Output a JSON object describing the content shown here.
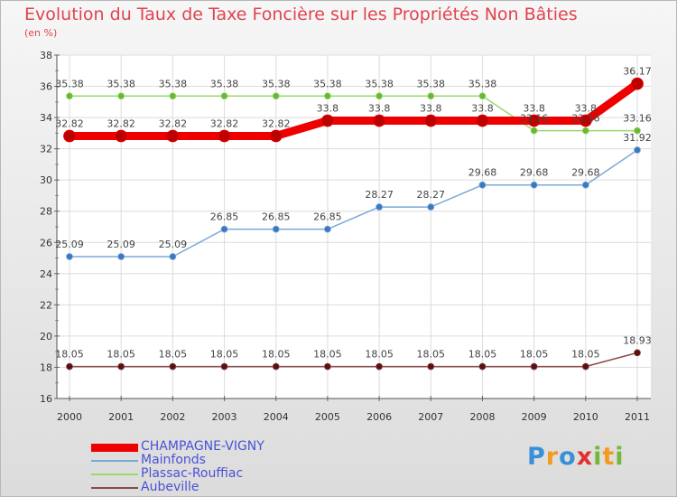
{
  "title": "Evolution du Taux de Taxe Foncière sur les Propriétés Non Bâties",
  "subtitle": "(en %)",
  "logo": {
    "text": "Proxiti",
    "letters": [
      {
        "ch": "P",
        "color": "#3a8fd9"
      },
      {
        "ch": "r",
        "color": "#f29b1d"
      },
      {
        "ch": "o",
        "color": "#3a8fd9"
      },
      {
        "ch": "x",
        "color": "#e2302f"
      },
      {
        "ch": "i",
        "color": "#73b83a"
      },
      {
        "ch": "t",
        "color": "#f29b1d"
      },
      {
        "ch": "i",
        "color": "#73b83a"
      }
    ]
  },
  "chart_data": {
    "type": "line",
    "title": "Evolution du Taux de Taxe Foncière sur les Propriétés Non Bâties",
    "ylabel": "(en %)",
    "xlabel": "",
    "ylim": [
      16,
      38
    ],
    "yticks": [
      16,
      18,
      20,
      22,
      24,
      26,
      28,
      30,
      32,
      34,
      36,
      38
    ],
    "ytick_labels": [
      "16",
      "18",
      "20",
      "22",
      "24",
      "26",
      "28",
      "30",
      "32",
      "34",
      "36",
      "38"
    ],
    "grid": true,
    "categories": [
      "2000",
      "2001",
      "2002",
      "2003",
      "2004",
      "2005",
      "2006",
      "2007",
      "2008",
      "2009",
      "2010",
      "2011"
    ],
    "series": [
      {
        "name": "CHAMPAGNE-VIGNY",
        "color": "#ee0000",
        "point_color": "#bb0000",
        "values": [
          32.82,
          32.82,
          32.82,
          32.82,
          32.82,
          33.8,
          33.8,
          33.8,
          33.8,
          33.8,
          33.8,
          36.17
        ],
        "labels": [
          "32.82",
          "32.82",
          "32.82",
          "32.82",
          "32.82",
          "33.8",
          "33.8",
          "33.8",
          "33.8",
          "33.8",
          "33.8",
          "36.17"
        ]
      },
      {
        "name": "Mainfonds",
        "color": "#7aa9d8",
        "point_color": "#3b78c2",
        "values": [
          25.09,
          25.09,
          25.09,
          26.85,
          26.85,
          26.85,
          28.27,
          28.27,
          29.68,
          29.68,
          29.68,
          31.92
        ],
        "labels": [
          "25.09",
          "25.09",
          "25.09",
          "26.85",
          "26.85",
          "26.85",
          "28.27",
          "28.27",
          "29.68",
          "29.68",
          "29.68",
          "31.92"
        ]
      },
      {
        "name": "Plassac-Rouffiac",
        "color": "#9ad86b",
        "point_color": "#6ab735",
        "values": [
          35.38,
          35.38,
          35.38,
          35.38,
          35.38,
          35.38,
          35.38,
          35.38,
          35.38,
          33.16,
          33.16,
          33.16
        ],
        "labels": [
          "35.38",
          "35.38",
          "35.38",
          "35.38",
          "35.38",
          "35.38",
          "35.38",
          "35.38",
          "35.38",
          "33.16",
          "33.16",
          "33.16"
        ]
      },
      {
        "name": "Aubeville",
        "color": "#8a4a4a",
        "point_color": "#5a1010",
        "values": [
          18.05,
          18.05,
          18.05,
          18.05,
          18.05,
          18.05,
          18.05,
          18.05,
          18.05,
          18.05,
          18.05,
          18.93
        ],
        "labels": [
          "18.05",
          "18.05",
          "18.05",
          "18.05",
          "18.05",
          "18.05",
          "18.05",
          "18.05",
          "18.05",
          "18.05",
          "18.05",
          "18.93"
        ]
      }
    ]
  }
}
